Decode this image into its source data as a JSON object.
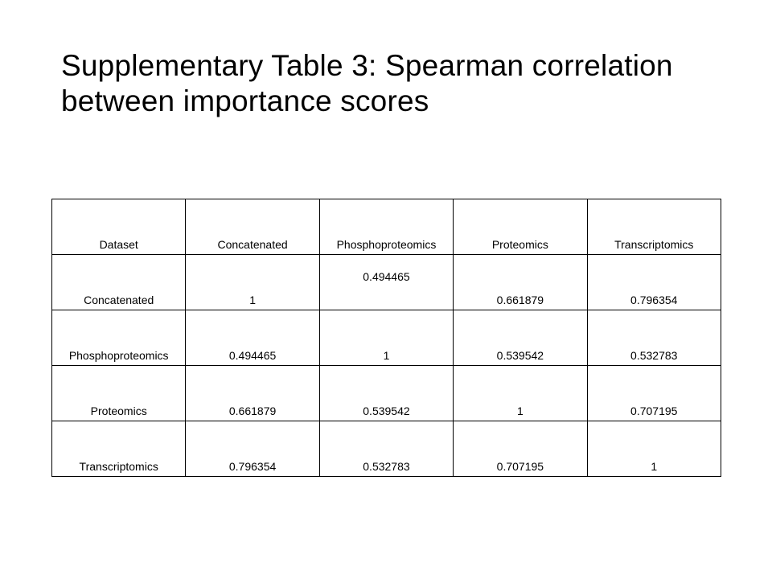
{
  "title": {
    "line1": "Supplementary Table 3: Spearman correlation",
    "line2": "between importance scores"
  },
  "table": {
    "headers": [
      "Dataset",
      "Concatenated",
      "Phosphoproteomics",
      "Proteomics",
      "Transcriptomics"
    ],
    "rows": [
      [
        "Concatenated",
        "1",
        "0.494465",
        "0.661879",
        "0.796354"
      ],
      [
        "Phosphoproteomics",
        "0.494465",
        "1",
        "0.539542",
        "0.532783"
      ],
      [
        "Proteomics",
        "0.661879",
        "0.539542",
        "1",
        "0.707195"
      ],
      [
        "Transcriptomics",
        "0.796354",
        "0.532783",
        "0.707195",
        "1"
      ]
    ]
  }
}
